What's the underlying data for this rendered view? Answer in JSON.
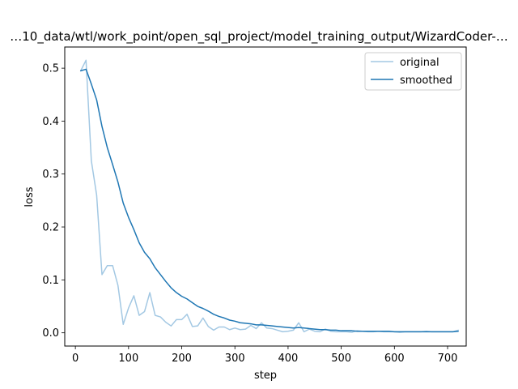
{
  "chart_data": {
    "type": "line",
    "title": "…10_data/wtl/work_point/open_sql_project/model_training_output/WizardCoder-…",
    "xlabel": "step",
    "ylabel": "loss",
    "xlim": [
      -20,
      735
    ],
    "ylim": [
      -0.025,
      0.54
    ],
    "xticks": [
      0,
      100,
      200,
      300,
      400,
      500,
      600,
      700
    ],
    "yticks": [
      0.0,
      0.1,
      0.2,
      0.3,
      0.4,
      0.5
    ],
    "xtick_labels": [
      "0",
      "100",
      "200",
      "300",
      "400",
      "500",
      "600",
      "700"
    ],
    "ytick_labels": [
      "0.0",
      "0.1",
      "0.2",
      "0.3",
      "0.4",
      "0.5"
    ],
    "grid": false,
    "legend_position": "upper right",
    "colors": {
      "original": "#a3c8e3",
      "smoothed": "#1f77b4"
    },
    "series": [
      {
        "name": "original",
        "x": [
          10,
          20,
          30,
          40,
          50,
          60,
          70,
          80,
          90,
          100,
          110,
          120,
          130,
          140,
          150,
          160,
          170,
          180,
          190,
          200,
          210,
          220,
          230,
          240,
          250,
          260,
          270,
          280,
          290,
          300,
          310,
          320,
          330,
          340,
          350,
          360,
          370,
          380,
          390,
          400,
          410,
          420,
          430,
          440,
          450,
          460,
          470,
          480,
          490,
          500,
          510,
          520,
          530,
          540,
          550,
          560,
          570,
          580,
          590,
          600,
          610,
          620,
          630,
          640,
          650,
          660,
          670,
          680,
          690,
          700,
          710,
          720
        ],
        "values": [
          0.495,
          0.515,
          0.325,
          0.26,
          0.11,
          0.127,
          0.127,
          0.09,
          0.016,
          0.047,
          0.07,
          0.033,
          0.04,
          0.076,
          0.033,
          0.03,
          0.02,
          0.013,
          0.025,
          0.025,
          0.035,
          0.012,
          0.013,
          0.028,
          0.012,
          0.005,
          0.011,
          0.011,
          0.006,
          0.009,
          0.006,
          0.007,
          0.014,
          0.008,
          0.019,
          0.009,
          0.008,
          0.005,
          0.002,
          0.003,
          0.005,
          0.019,
          0.002,
          0.007,
          0.003,
          0.002,
          0.007,
          0.003,
          0.002,
          0.002,
          0.002,
          0.001,
          0.004,
          0.003,
          0.002,
          0.002,
          0.003,
          0.002,
          0.002,
          0.002,
          0.001,
          0.002,
          0.002,
          0.002,
          0.002,
          0.003,
          0.002,
          0.002,
          0.002,
          0.002,
          0.002,
          0.005
        ]
      },
      {
        "name": "smoothed",
        "x": [
          10,
          20,
          30,
          40,
          50,
          60,
          70,
          80,
          90,
          100,
          110,
          120,
          130,
          140,
          150,
          160,
          170,
          180,
          190,
          200,
          210,
          220,
          230,
          240,
          250,
          260,
          270,
          280,
          290,
          300,
          310,
          320,
          330,
          340,
          350,
          360,
          370,
          380,
          390,
          400,
          410,
          420,
          430,
          440,
          450,
          460,
          470,
          480,
          490,
          500,
          510,
          520,
          530,
          540,
          550,
          560,
          570,
          580,
          590,
          600,
          610,
          620,
          630,
          640,
          650,
          660,
          670,
          680,
          690,
          700,
          710,
          720
        ],
        "values": [
          0.495,
          0.498,
          0.47,
          0.44,
          0.39,
          0.35,
          0.318,
          0.285,
          0.245,
          0.218,
          0.195,
          0.17,
          0.152,
          0.14,
          0.123,
          0.11,
          0.097,
          0.085,
          0.076,
          0.069,
          0.064,
          0.057,
          0.05,
          0.046,
          0.041,
          0.035,
          0.031,
          0.028,
          0.024,
          0.022,
          0.019,
          0.018,
          0.017,
          0.015,
          0.015,
          0.014,
          0.013,
          0.012,
          0.011,
          0.01,
          0.009,
          0.01,
          0.009,
          0.008,
          0.007,
          0.006,
          0.006,
          0.005,
          0.005,
          0.004,
          0.004,
          0.004,
          0.003,
          0.003,
          0.003,
          0.003,
          0.003,
          0.003,
          0.003,
          0.002,
          0.002,
          0.002,
          0.002,
          0.002,
          0.002,
          0.002,
          0.002,
          0.002,
          0.002,
          0.002,
          0.002,
          0.003
        ]
      }
    ]
  }
}
